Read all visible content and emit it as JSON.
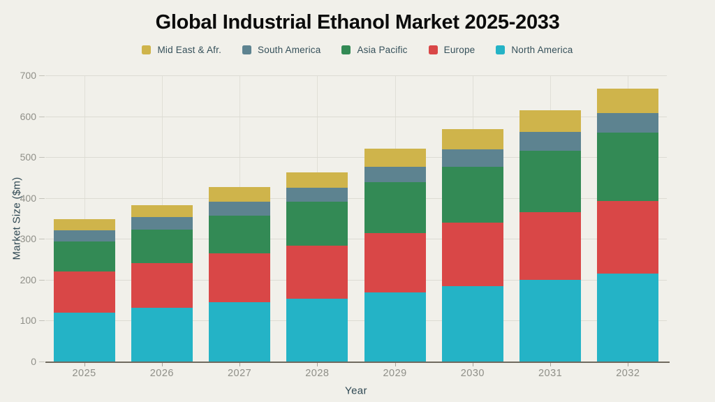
{
  "page": {
    "background": "#f1f0ea"
  },
  "palette": {
    "title_color": "#0b0b0b",
    "axis_title_color": "#2e4752",
    "tick_label_color": "#8f8f88",
    "gridline_color": "#dcdbd3",
    "axis_line_color": "#6f6a5f"
  },
  "chart_data": {
    "type": "bar",
    "stacked": true,
    "title": "Global Industrial Ethanol Market 2025-2033",
    "xlabel": "Year",
    "ylabel": "Market Size ($m)",
    "categories": [
      "2025",
      "2026",
      "2027",
      "2028",
      "2029",
      "2030",
      "2031",
      "2032"
    ],
    "series": [
      {
        "name": "North America",
        "color": "#24b3c6",
        "values": [
          120,
          131,
          145,
          154,
          169,
          184,
          199,
          215
        ]
      },
      {
        "name": "Europe",
        "color": "#d94747",
        "values": [
          100,
          110,
          119,
          130,
          145,
          156,
          166,
          177
        ]
      },
      {
        "name": "Asia Pacific",
        "color": "#338a55",
        "values": [
          73,
          81,
          93,
          107,
          124,
          136,
          151,
          168
        ]
      },
      {
        "name": "South America",
        "color": "#5d8390",
        "values": [
          28,
          32,
          34,
          34,
          38,
          43,
          45,
          47
        ]
      },
      {
        "name": "Mid East & Afr.",
        "color": "#cfb44b",
        "values": [
          27,
          29,
          35,
          38,
          45,
          50,
          53,
          60
        ]
      }
    ],
    "totals": [
      348,
      383,
      426,
      463,
      521,
      569,
      614,
      667
    ],
    "ylim": [
      0,
      700
    ],
    "yticks": [
      0,
      100,
      200,
      300,
      400,
      500,
      600,
      700
    ],
    "grid": true,
    "legend_position": "top",
    "legend_order": [
      "Mid East & Afr.",
      "South America",
      "Asia Pacific",
      "Europe",
      "North America"
    ]
  }
}
